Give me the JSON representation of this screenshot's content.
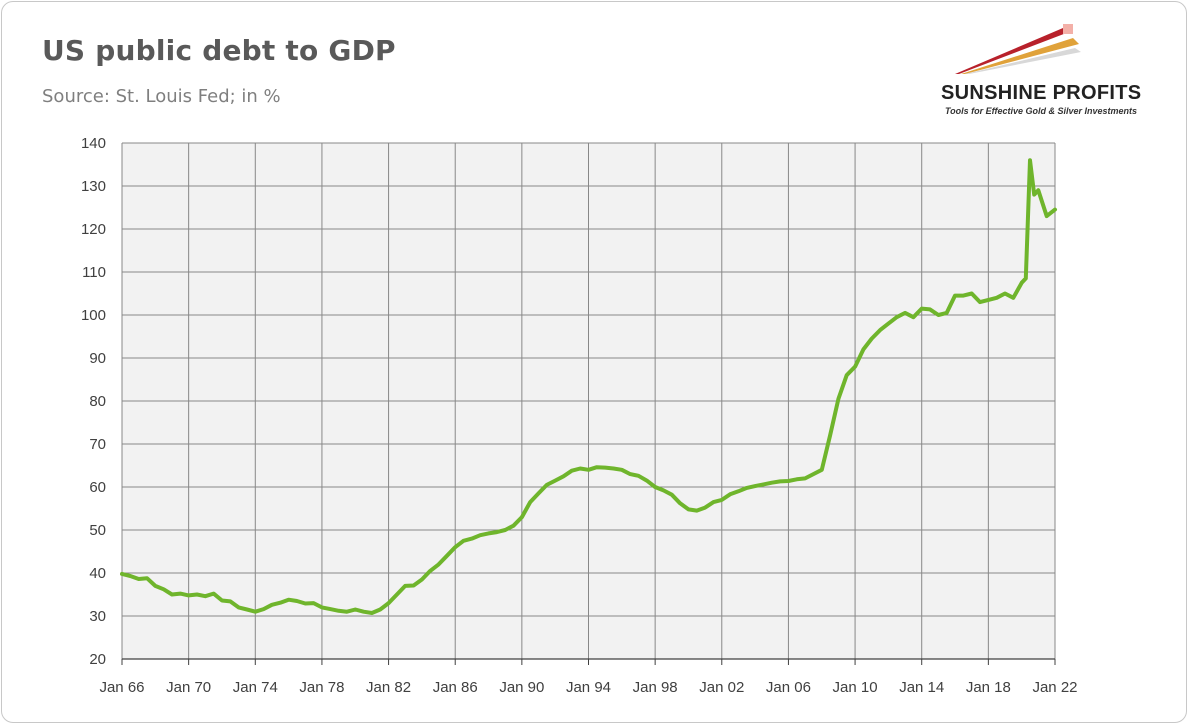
{
  "title": "US public debt to GDP",
  "subtitle": "Source: St. Louis Fed; in %",
  "logo": {
    "brand": "SUNSHINE PROFITS",
    "tagline": "Tools for Effective Gold & Silver Investments"
  },
  "colors": {
    "line": "#6fb52c",
    "plot_bg": "#f2f2f2",
    "grid": "#888888",
    "text": "#595959"
  },
  "chart_data": {
    "type": "line",
    "title": "US public debt to GDP",
    "subtitle": "Source: St. Louis Fed; in %",
    "xlabel": "",
    "ylabel": "",
    "ylim": [
      20,
      140
    ],
    "yticks": [
      20,
      30,
      40,
      50,
      60,
      70,
      80,
      90,
      100,
      110,
      120,
      130,
      140
    ],
    "xlim": [
      1966,
      2022
    ],
    "xticks": [
      {
        "x": 1966,
        "label": "Jan 66"
      },
      {
        "x": 1970,
        "label": "Jan 70"
      },
      {
        "x": 1974,
        "label": "Jan 74"
      },
      {
        "x": 1978,
        "label": "Jan 78"
      },
      {
        "x": 1982,
        "label": "Jan 82"
      },
      {
        "x": 1986,
        "label": "Jan 86"
      },
      {
        "x": 1990,
        "label": "Jan 90"
      },
      {
        "x": 1994,
        "label": "Jan 94"
      },
      {
        "x": 1998,
        "label": "Jan 98"
      },
      {
        "x": 2002,
        "label": "Jan 02"
      },
      {
        "x": 2006,
        "label": "Jan 06"
      },
      {
        "x": 2010,
        "label": "Jan 10"
      },
      {
        "x": 2014,
        "label": "Jan 14"
      },
      {
        "x": 2018,
        "label": "Jan 18"
      },
      {
        "x": 2022,
        "label": "Jan 22"
      }
    ],
    "grid": true,
    "series": [
      {
        "name": "",
        "x": [
          1966.0,
          1966.5,
          1967.0,
          1967.5,
          1968.0,
          1968.5,
          1969.0,
          1969.5,
          1970.0,
          1970.5,
          1971.0,
          1971.5,
          1972.0,
          1972.5,
          1973.0,
          1973.5,
          1974.0,
          1974.5,
          1975.0,
          1975.5,
          1976.0,
          1976.5,
          1977.0,
          1977.5,
          1978.0,
          1978.5,
          1979.0,
          1979.5,
          1980.0,
          1980.5,
          1981.0,
          1981.5,
          1982.0,
          1982.5,
          1983.0,
          1983.5,
          1984.0,
          1984.5,
          1985.0,
          1985.5,
          1986.0,
          1986.5,
          1987.0,
          1987.5,
          1988.0,
          1988.5,
          1989.0,
          1989.5,
          1990.0,
          1990.5,
          1991.0,
          1991.5,
          1992.0,
          1992.5,
          1993.0,
          1993.5,
          1994.0,
          1994.5,
          1995.0,
          1995.5,
          1996.0,
          1996.5,
          1997.0,
          1997.5,
          1998.0,
          1998.5,
          1999.0,
          1999.5,
          2000.0,
          2000.5,
          2001.0,
          2001.5,
          2002.0,
          2002.5,
          2003.0,
          2003.5,
          2004.0,
          2004.5,
          2005.0,
          2005.5,
          2006.0,
          2006.5,
          2007.0,
          2007.5,
          2008.0,
          2008.5,
          2009.0,
          2009.5,
          2010.0,
          2010.5,
          2011.0,
          2011.5,
          2012.0,
          2012.5,
          2013.0,
          2013.5,
          2014.0,
          2014.5,
          2015.0,
          2015.5,
          2016.0,
          2016.5,
          2017.0,
          2017.5,
          2018.0,
          2018.5,
          2019.0,
          2019.5,
          2020.0,
          2020.25,
          2020.5,
          2020.75,
          2021.0,
          2021.5,
          2022.0
        ],
        "values": [
          39.8,
          39.3,
          38.6,
          38.8,
          37.0,
          36.2,
          35.0,
          35.2,
          34.8,
          35.0,
          34.6,
          35.2,
          33.6,
          33.4,
          32.0,
          31.5,
          31.0,
          31.6,
          32.6,
          33.1,
          33.8,
          33.5,
          32.9,
          33.0,
          32.0,
          31.6,
          31.2,
          31.0,
          31.5,
          31.0,
          30.7,
          31.5,
          33.0,
          35.0,
          37.0,
          37.1,
          38.5,
          40.5,
          42.0,
          44.0,
          46.0,
          47.5,
          48.0,
          48.8,
          49.2,
          49.5,
          50.0,
          51.0,
          53.0,
          56.5,
          58.5,
          60.5,
          61.5,
          62.5,
          63.8,
          64.3,
          64.0,
          64.6,
          64.5,
          64.3,
          64.0,
          63.0,
          62.6,
          61.5,
          60.0,
          59.2,
          58.2,
          56.2,
          54.8,
          54.5,
          55.2,
          56.5,
          57.0,
          58.3,
          59.0,
          59.8,
          60.2,
          60.6,
          61.0,
          61.3,
          61.4,
          61.8,
          62.0,
          63.0,
          64.0,
          72.0,
          80.5,
          86.0,
          88.0,
          92.0,
          94.5,
          96.5,
          98.0,
          99.5,
          100.5,
          99.5,
          101.5,
          101.3,
          100.0,
          100.5,
          104.5,
          104.5,
          105.0,
          103.0,
          103.5,
          104.0,
          105.0,
          104.0,
          107.5,
          108.5,
          136.0,
          128.0,
          129.0,
          123.0,
          124.5
        ]
      }
    ]
  }
}
